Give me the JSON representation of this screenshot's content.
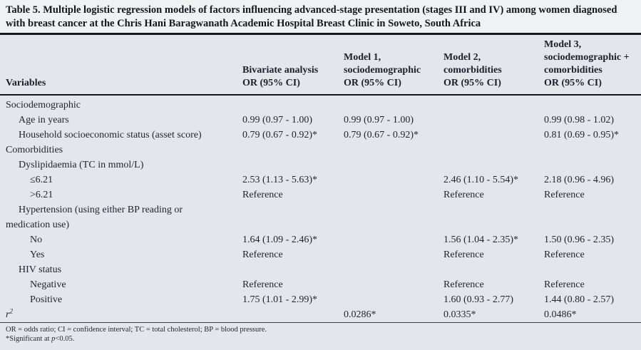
{
  "table": {
    "title": "Table 5. Multiple logistic regression models of factors influencing advanced-stage presentation (stages III and IV) among women diagnosed with breast cancer at the Chris Hani Baragwanath Academic Hospital Breast Clinic in Soweto, South Africa",
    "columns": {
      "variables_label": "Variables",
      "model_headers": [
        [
          "Bivariate analysis",
          "OR (95% CI)"
        ],
        [
          "Model 1,",
          "sociodemographic",
          "OR (95% CI)"
        ],
        [
          "Model 2,",
          "comorbidities",
          "OR (95% CI)"
        ],
        [
          "Model 3,",
          "sociodemographic +",
          "comorbidities",
          "OR (95% CI)"
        ]
      ]
    },
    "rows": [
      {
        "label": "Sociodemographic",
        "indent": 0,
        "values": [
          "",
          "",
          "",
          ""
        ]
      },
      {
        "label": "Age in years",
        "indent": 1,
        "values": [
          "0.99 (0.97 - 1.00)",
          "0.99 (0.97 - 1.00)",
          "",
          "0.99 (0.98 - 1.02)"
        ]
      },
      {
        "label": "Household socioeconomic status (asset score)",
        "indent": 1,
        "values": [
          "0.79 (0.67 - 0.92)*",
          "0.79 (0.67 - 0.92)*",
          "",
          "0.81 (0.69 - 0.95)*"
        ]
      },
      {
        "label": "Comorbidities",
        "indent": 0,
        "values": [
          "",
          "",
          "",
          ""
        ]
      },
      {
        "label": "Dyslipidaemia (TC in mmol/L)",
        "indent": 1,
        "values": [
          "",
          "",
          "",
          ""
        ]
      },
      {
        "label": "≤6.21",
        "indent": 2,
        "values": [
          "2.53 (1.13 - 5.63)*",
          "",
          "2.46 (1.10 - 5.54)*",
          "2.18 (0.96 - 4.96)"
        ]
      },
      {
        "label": ">6.21",
        "indent": 2,
        "values": [
          "Reference",
          "",
          "Reference",
          "Reference"
        ]
      },
      {
        "label": "Hypertension (using either BP reading or",
        "label_cont": "medication use)",
        "indent": 1,
        "cont_indent": 0,
        "values": [
          "",
          "",
          "",
          ""
        ]
      },
      {
        "label": "No",
        "indent": 2,
        "values": [
          "1.64 (1.09 - 2.46)*",
          "",
          "1.56 (1.04 - 2.35)*",
          "1.50 (0.96 - 2.35)"
        ]
      },
      {
        "label": "Yes",
        "indent": 2,
        "values": [
          "Reference",
          "",
          "Reference",
          "Reference"
        ]
      },
      {
        "label": "HIV status",
        "indent": 1,
        "values": [
          "",
          "",
          "",
          ""
        ]
      },
      {
        "label": "Negative",
        "indent": 2,
        "values": [
          "Reference",
          "",
          "Reference",
          "Reference"
        ]
      },
      {
        "label": "Positive",
        "indent": 2,
        "values": [
          "1.75 (1.01 - 2.99)*",
          "",
          "1.60 (0.93 - 2.77)",
          "1.44 (0.80 - 2.57)"
        ]
      },
      {
        "label": "r",
        "superscript": "2",
        "italic": true,
        "indent": 0,
        "values": [
          "",
          "0.0286*",
          "0.0335*",
          "0.0486*"
        ]
      }
    ],
    "footnotes": {
      "abbreviations": "OR = odds ratio; CI = confidence interval; TC = total cholesterol; BP = blood pressure.",
      "significance_prefix": "*Significant at ",
      "significance_p": "p",
      "significance_suffix": "<0.05."
    },
    "colors": {
      "title_background": "#f0f1f2",
      "body_background": "#e3e6eb",
      "rule_color": "#14181f",
      "text_color": "#1e2430"
    }
  }
}
